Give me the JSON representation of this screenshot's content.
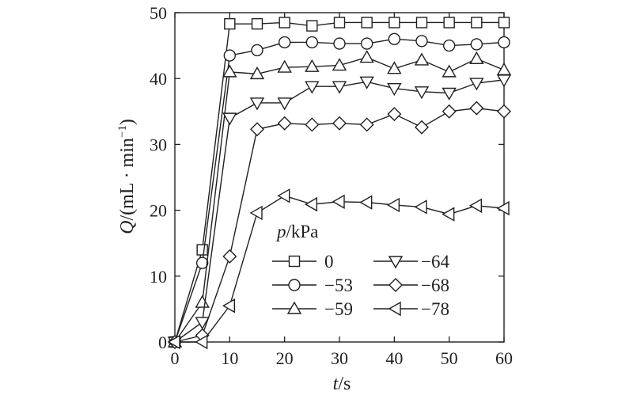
{
  "chart_data": {
    "type": "line",
    "xlabel_var": "t",
    "xlabel_unit": "/s",
    "ylabel_var": "Q",
    "ylabel_unit": "/(mL · min",
    "ylabel_sup": "−1",
    "ylabel_close": ")",
    "xlim": [
      0,
      60
    ],
    "ylim": [
      0,
      50
    ],
    "x_ticks": [
      0,
      10,
      20,
      30,
      40,
      50,
      60
    ],
    "x_tick_labels": [
      "0",
      "10",
      "20",
      "30",
      "40",
      "50",
      "60"
    ],
    "y_ticks": [
      0,
      10,
      20,
      30,
      40,
      50
    ],
    "y_tick_labels": [
      "0",
      "10",
      "20",
      "30",
      "40",
      "50"
    ],
    "grid": false,
    "legend_title_var": "p",
    "legend_title_unit": "/kPa",
    "legend_position": "lower-right",
    "line_color": "#231f20",
    "x": [
      0,
      5,
      10,
      15,
      20,
      25,
      30,
      35,
      40,
      45,
      50,
      55,
      60
    ],
    "series": [
      {
        "name": "0",
        "marker": "square",
        "values": [
          0,
          14,
          48.3,
          48.3,
          48.5,
          48,
          48.5,
          48.5,
          48.5,
          48.5,
          48.5,
          48.5,
          48.5
        ]
      },
      {
        "name": "−53",
        "marker": "circle",
        "values": [
          0,
          12,
          43.5,
          44.3,
          45.5,
          45.5,
          45.3,
          45.3,
          46,
          45.7,
          45,
          45.2,
          45.5
        ]
      },
      {
        "name": "−59",
        "marker": "triangle-up",
        "values": [
          0,
          6,
          41,
          40.7,
          41.7,
          41.8,
          42,
          43.2,
          41.5,
          42.8,
          41,
          43,
          41.3
        ]
      },
      {
        "name": "−64",
        "marker": "triangle-down",
        "values": [
          0,
          3,
          34,
          36.3,
          36.3,
          38.8,
          38.8,
          39.5,
          38.5,
          38,
          37.8,
          39.3,
          39.8
        ]
      },
      {
        "name": "−68",
        "marker": "diamond",
        "values": [
          0,
          1,
          13,
          32.3,
          33.2,
          33,
          33.2,
          33,
          34.6,
          32.6,
          35,
          35.5,
          35
        ]
      },
      {
        "name": "−78",
        "marker": "triangle-left",
        "values": [
          0,
          0,
          5.5,
          19.6,
          22.2,
          20.9,
          21.3,
          21.2,
          20.8,
          20.5,
          19.4,
          20.7,
          20.3
        ]
      }
    ]
  }
}
